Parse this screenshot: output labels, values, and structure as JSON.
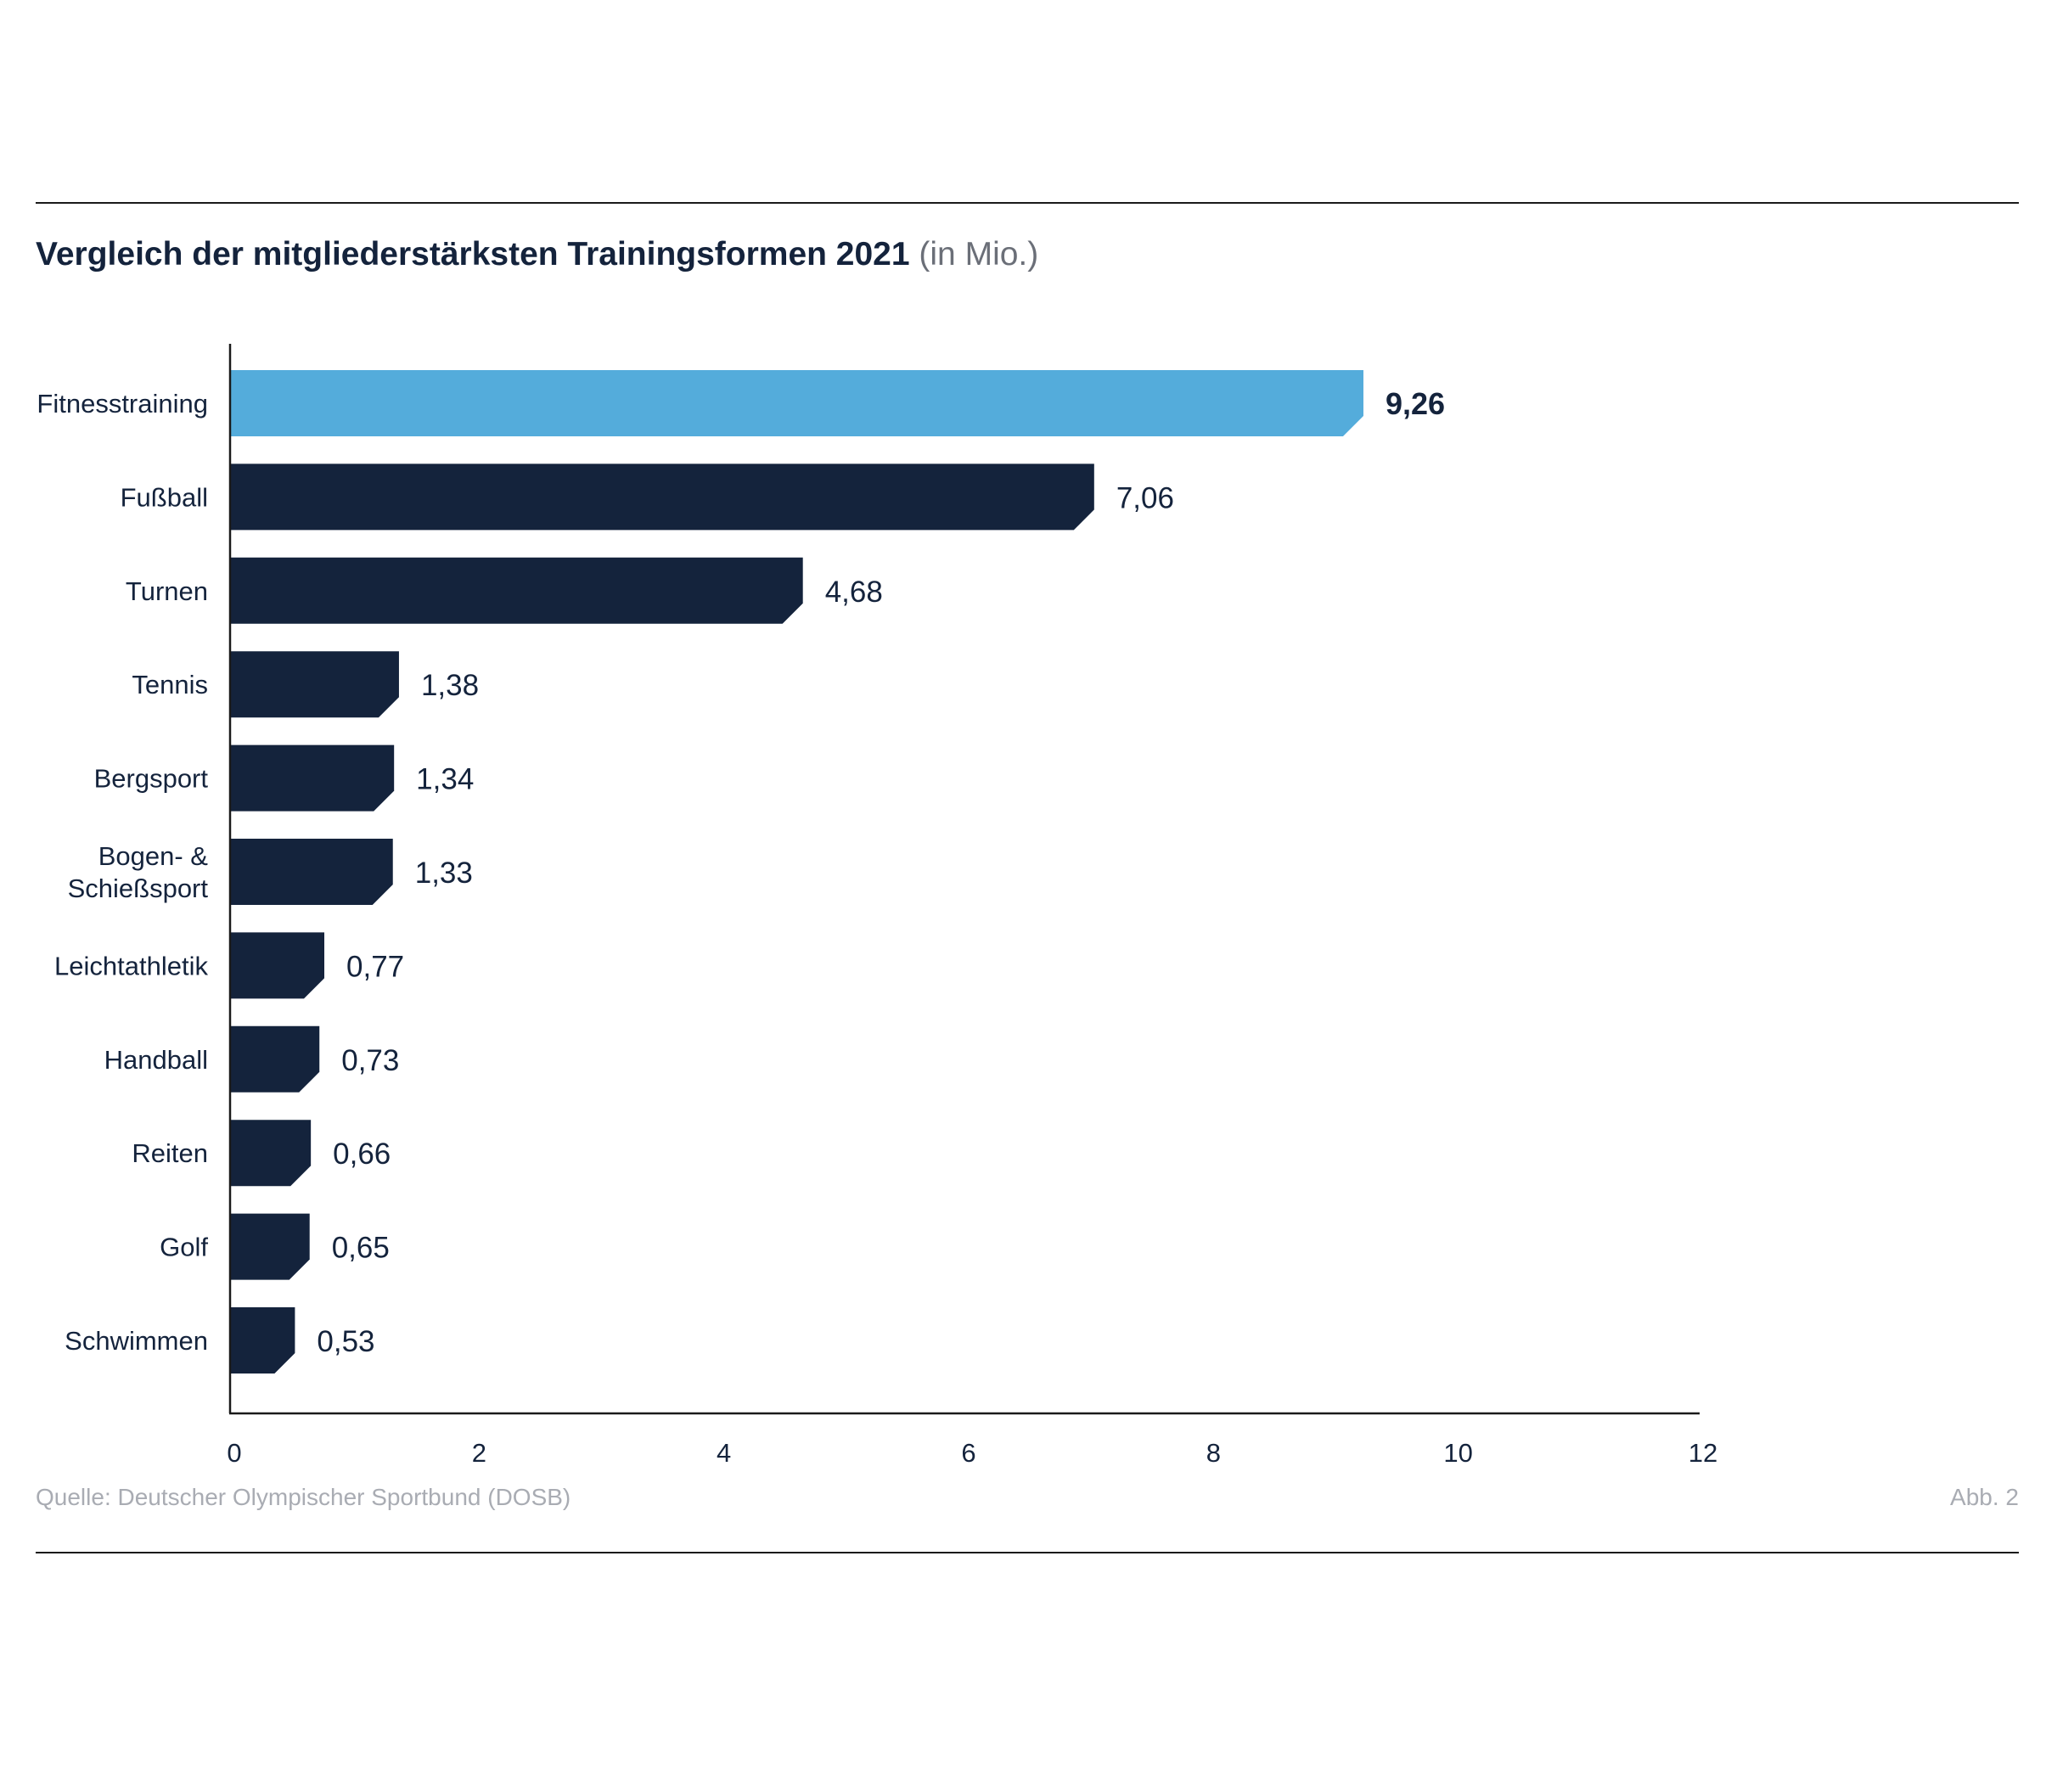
{
  "title": {
    "main": "Vergleich der mitgliederstärksten Trainingsformen 2021",
    "unit": "(in Mio.)"
  },
  "colors": {
    "highlight": "#54acdb",
    "bar": "#14233c",
    "axis": "#1a1a1a",
    "text": "#14233c"
  },
  "chart_data": {
    "type": "bar",
    "orientation": "horizontal",
    "categories": [
      [
        "Fitnesstraining"
      ],
      [
        "Fußball"
      ],
      [
        "Turnen"
      ],
      [
        "Tennis"
      ],
      [
        "Bergsport"
      ],
      [
        "Bogen- &",
        "Schießsport"
      ],
      [
        "Leichtathletik"
      ],
      [
        "Handball"
      ],
      [
        "Reiten"
      ],
      [
        "Golf"
      ],
      [
        "Schwimmen"
      ]
    ],
    "values": [
      9.26,
      7.06,
      4.68,
      1.38,
      1.34,
      1.33,
      0.77,
      0.73,
      0.66,
      0.65,
      0.53
    ],
    "value_labels": [
      "9,26",
      "7,06",
      "4,68",
      "1,38",
      "1,34",
      "1,33",
      "0,77",
      "0,73",
      "0,66",
      "0,65",
      "0,53"
    ],
    "highlight_index": 0,
    "xlim": [
      0,
      12
    ],
    "xticks": [
      0,
      2,
      4,
      6,
      8,
      10,
      12
    ],
    "grid": false,
    "xlabel": "",
    "ylabel": ""
  },
  "footer": {
    "source": "Quelle: Deutscher Olympischer Sportbund (DOSB)",
    "figure": "Abb. 2"
  }
}
